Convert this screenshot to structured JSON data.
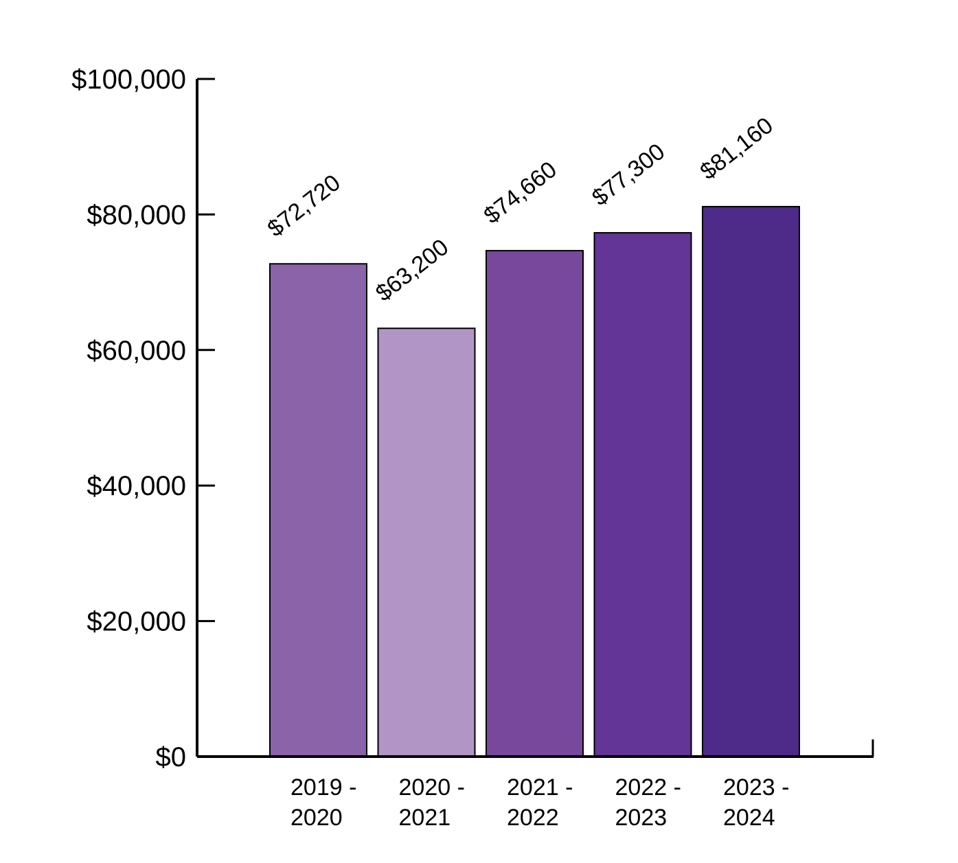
{
  "chart_data": {
    "type": "bar",
    "title": "",
    "xlabel": "",
    "ylabel": "",
    "categories": [
      "2019 - 2020",
      "2020 - 2021",
      "2021 - 2022",
      "2022 - 2023",
      "2023 - 2024"
    ],
    "category_lines": [
      [
        "2019 -",
        "2020"
      ],
      [
        "2020 -",
        "2021"
      ],
      [
        "2021 -",
        "2022"
      ],
      [
        "2022 -",
        "2023"
      ],
      [
        "2023 -",
        "2024"
      ]
    ],
    "values": [
      72720,
      63200,
      74660,
      77300,
      81160
    ],
    "data_labels": [
      "$72,720",
      "$63,200",
      "$74,660",
      "$77,300",
      "$81,160"
    ],
    "bar_colors": [
      "#8b63a9",
      "#b095c5",
      "#78489d",
      "#623596",
      "#4e2a89"
    ],
    "ylim": [
      0,
      100000
    ],
    "y_ticks": [
      0,
      20000,
      40000,
      60000,
      80000,
      100000
    ],
    "y_tick_labels": [
      "$0",
      "$20,000",
      "$40,000",
      "$60,000",
      "$80,000",
      "$100,000"
    ],
    "grid": false,
    "legend": "none"
  }
}
